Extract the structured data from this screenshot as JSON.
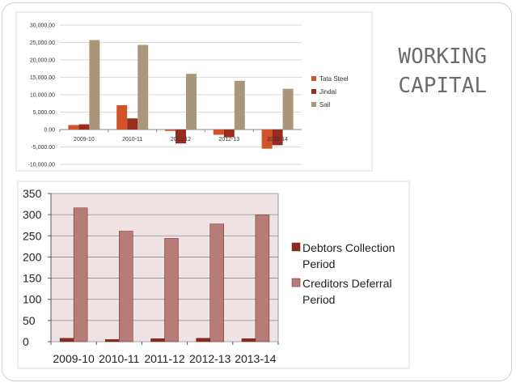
{
  "slide": {
    "title_lines": [
      "WORKING",
      "CAPITAL"
    ]
  },
  "chart_data": [
    {
      "type": "bar",
      "categories": [
        "2009-10",
        "2010-11",
        "2011-12",
        "2012-13",
        "2013-14"
      ],
      "series": [
        {
          "name": "Tata Steel",
          "color": "#d2522a",
          "values": [
            1300,
            7000,
            -400,
            -1500,
            -5500
          ]
        },
        {
          "name": "Jindal",
          "color": "#9c2b1f",
          "values": [
            1500,
            3200,
            -4000,
            -2200,
            -4500
          ]
        },
        {
          "name": "Sail",
          "color": "#a8977a",
          "values": [
            25700,
            24300,
            16000,
            14000,
            11700
          ]
        }
      ],
      "yticks": [
        "30,000.00",
        "25,000.00",
        "20,000.00",
        "15,000.00",
        "10,000.00",
        "5,000.00",
        "0.00",
        "-5,000.00",
        "-10,000.00"
      ],
      "ylim": [
        -10000,
        30000
      ],
      "grid": true,
      "legend": "right"
    },
    {
      "type": "bar",
      "categories": [
        "2009-10",
        "2010-11",
        "2011-12",
        "2012-13",
        "2013-14"
      ],
      "series": [
        {
          "name": "Debtors Collection Period",
          "legend_lines": [
            "Debtors Collection",
            "Period"
          ],
          "color": "#8b2a20",
          "values": [
            8,
            5,
            7,
            8,
            7
          ]
        },
        {
          "name": "Creditors Deferral Period",
          "legend_lines": [
            "Creditors Deferral",
            "Period"
          ],
          "color": "#b87c78",
          "values": [
            316,
            261,
            244,
            278,
            299
          ]
        }
      ],
      "yticks": [
        "350",
        "300",
        "250",
        "200",
        "150",
        "100",
        "50",
        "0"
      ],
      "ylim": [
        0,
        350
      ],
      "grid": true,
      "legend": "right"
    }
  ]
}
